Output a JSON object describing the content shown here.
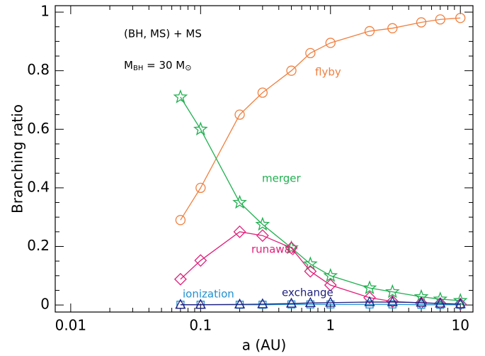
{
  "chart_data": {
    "type": "line",
    "annotation": "(BH, MS) + MS",
    "mass_label": {
      "symbol": "M",
      "subscript": "BH",
      "equals": " = 30 M",
      "sun": "⊙"
    },
    "x_label": "a (AU)",
    "y_label": "Branching ratio",
    "log_x": true,
    "x": [
      0.07,
      0.1,
      0.2,
      0.3,
      0.5,
      0.7,
      1,
      2,
      3,
      5,
      7,
      10
    ],
    "series": [
      {
        "name": "flyby",
        "color": "#f08040",
        "marker": "circle",
        "values": [
          0.29,
          0.4,
          0.65,
          0.725,
          0.8,
          0.86,
          0.895,
          0.935,
          0.945,
          0.965,
          0.975,
          0.98
        ]
      },
      {
        "name": "merger",
        "color": "#20b050",
        "marker": "star",
        "values": [
          0.71,
          0.6,
          0.35,
          0.275,
          0.195,
          0.14,
          0.1,
          0.058,
          0.045,
          0.028,
          0.02,
          0.015
        ]
      },
      {
        "name": "runaway",
        "color": "#e0207a",
        "marker": "diamond",
        "values": [
          0.088,
          0.152,
          0.25,
          0.237,
          0.195,
          0.115,
          0.068,
          0.025,
          0.012,
          0.007,
          0.005,
          0.003
        ]
      },
      {
        "name": "ionization",
        "color": "#2090d0",
        "marker": "square",
        "values": [
          0.001,
          0.001,
          0.001,
          0.001,
          0.002,
          0.002,
          0.002,
          0.002,
          0.002,
          0.001,
          0.001,
          0.001
        ]
      },
      {
        "name": "exchange",
        "color": "#202080",
        "marker": "triangle",
        "values": [
          0.001,
          0.001,
          0.002,
          0.003,
          0.005,
          0.007,
          0.008,
          0.01,
          0.01,
          0.008,
          0.005,
          0.003
        ]
      }
    ],
    "xlim": [
      0.0076,
      12.5
    ],
    "ylim": [
      -0.024,
      1.022
    ],
    "xticks": [
      0.01,
      0.1,
      1,
      10
    ],
    "xminorticks": [
      0.02,
      0.03,
      0.04,
      0.05,
      0.06,
      0.07,
      0.08,
      0.09,
      0.2,
      0.3,
      0.4,
      0.5,
      0.6,
      0.7,
      0.8,
      0.9,
      2,
      3,
      4,
      5,
      6,
      7,
      8,
      9
    ],
    "yticks": [
      0,
      0.2,
      0.4,
      0.6,
      0.8,
      1
    ],
    "yminorticks": [
      0.05,
      0.1,
      0.15,
      0.25,
      0.3,
      0.35,
      0.45,
      0.5,
      0.55,
      0.65,
      0.7,
      0.75,
      0.85,
      0.9,
      0.95
    ]
  }
}
